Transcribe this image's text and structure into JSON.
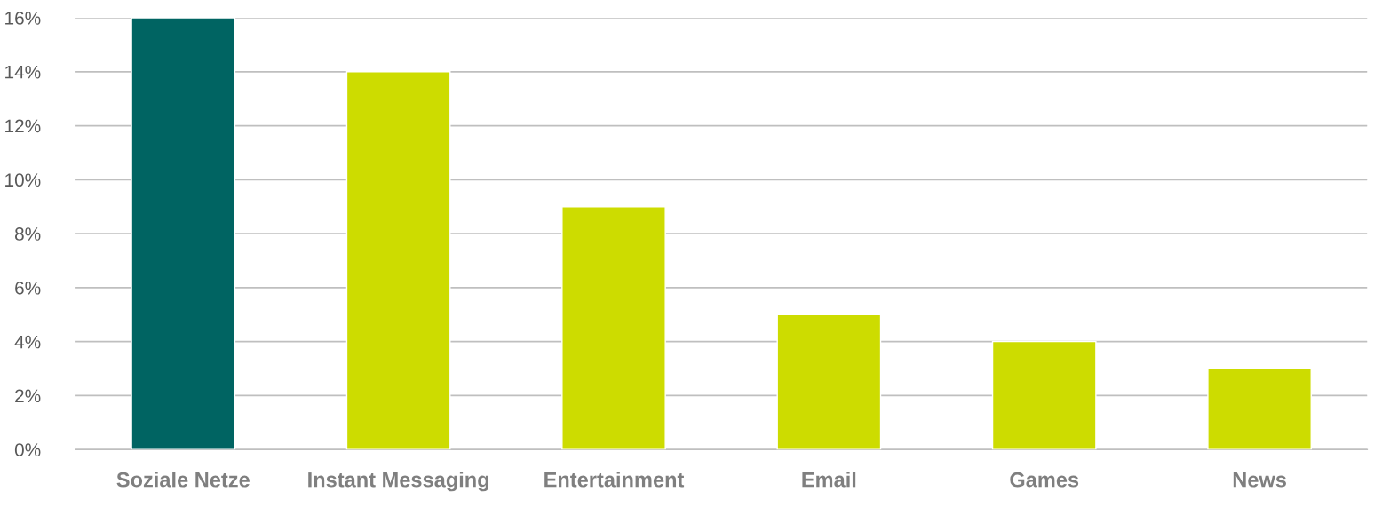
{
  "chart_data": {
    "type": "bar",
    "categories": [
      "Soziale Netze",
      "Instant Messaging",
      "Entertainment",
      "Email",
      "Games",
      "News"
    ],
    "values": [
      16,
      14,
      9,
      5,
      4,
      3
    ],
    "colors": [
      "#006462",
      "#cddc00",
      "#cddc00",
      "#cddc00",
      "#cddc00",
      "#cddc00"
    ],
    "ylim": [
      0,
      16
    ],
    "yticks": [
      {
        "value": 0,
        "label": "0%"
      },
      {
        "value": 2,
        "label": "2%"
      },
      {
        "value": 4,
        "label": "4%"
      },
      {
        "value": 6,
        "label": "6%"
      },
      {
        "value": 8,
        "label": "8%"
      },
      {
        "value": 10,
        "label": "10%"
      },
      {
        "value": 12,
        "label": "12%"
      },
      {
        "value": 14,
        "label": "14%"
      },
      {
        "value": 16,
        "label": "16%"
      }
    ],
    "grid": "y",
    "legend": false
  }
}
